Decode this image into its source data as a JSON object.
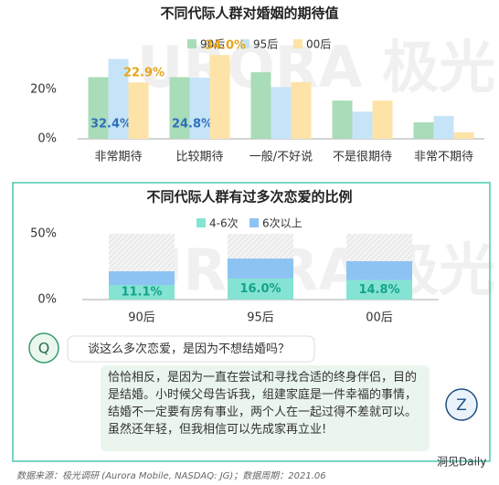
{
  "chart_data": [
    {
      "type": "bar",
      "title": "不同代际人群对婚姻的期待值",
      "categories": [
        "非常期待",
        "比较期待",
        "一般/不好说",
        "不是很期待",
        "非常不期待"
      ],
      "series": [
        {
          "name": "90后",
          "color": "#a9dcb9",
          "values": [
            25,
            25,
            27,
            15.5,
            6.7
          ]
        },
        {
          "name": "95后",
          "color": "#c6e4f8",
          "label_color": "#2f6fbd",
          "values": [
            32.4,
            24.8,
            21,
            11,
            9.3
          ],
          "value_labels": [
            "32.4%",
            "24.8%",
            null,
            null,
            null
          ]
        },
        {
          "name": "00后",
          "color": "#fde3a8",
          "label_color": "#e6a41a",
          "values": [
            22.9,
            34.0,
            23,
            15.5,
            2.6
          ],
          "value_labels": [
            "22.9%",
            "34.0%",
            null,
            null,
            null
          ]
        }
      ],
      "ylim": [
        0,
        40
      ],
      "yticks": [
        {
          "value": 0,
          "label": "0%"
        },
        {
          "value": 20,
          "label": "20%"
        }
      ]
    },
    {
      "type": "stacked_bar",
      "title": "不同代际人群有过多次恋爱的比例",
      "categories": [
        "90后",
        "95后",
        "00后"
      ],
      "series": [
        {
          "name": "4-6次",
          "color": "#85e3d3",
          "label_color": "#14a38b",
          "values": [
            11.1,
            16.0,
            14.8
          ],
          "value_labels": [
            "11.1%",
            "16.0%",
            "14.8%"
          ]
        },
        {
          "name": "6次以上",
          "color": "#8cc3f2",
          "values": [
            10.4,
            15.2,
            14.4
          ]
        }
      ],
      "ylim": [
        0,
        50
      ],
      "yticks": [
        {
          "value": 0,
          "label": "0%"
        },
        {
          "value": 50,
          "label": "50%"
        }
      ]
    }
  ],
  "watermark": "URORA 极光",
  "dialogue": {
    "q_avatar": "Q",
    "question": "谈这么多次恋爱，是因为不想结婚吗？",
    "z_avatar": "Z",
    "answer": "恰恰相反，是因为一直在尝试和寻找合适的终身伴侣，目的是结婚。小时候父母告诉我，组建家庭是一件幸福的事情，结婚不一定要有房有事业，两个人在一起过得不差就可以。虽然还年轻，但我相信可以先成家再立业!"
  },
  "footer": {
    "source": "数据来源：极光调研 (Aurora Mobile, NASDAQ: JG)；数据周期：2021.06",
    "brand": "洞见Daily"
  }
}
